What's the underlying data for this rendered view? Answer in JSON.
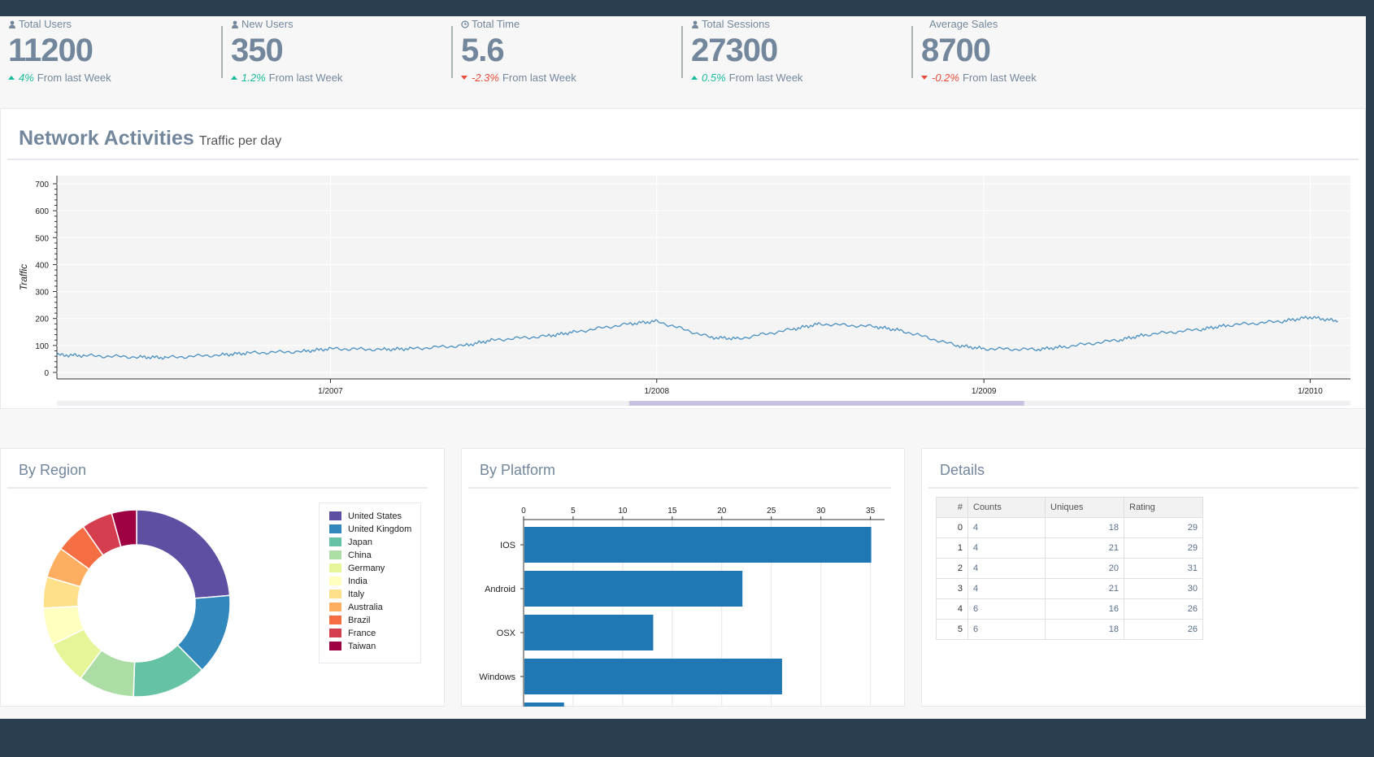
{
  "kpis": [
    {
      "label": "Total Users",
      "icon": "user-icon",
      "value": "11200",
      "change": "4%",
      "direction": "up",
      "suffix": "From last Week"
    },
    {
      "label": "New Users",
      "icon": "user-icon",
      "value": "350",
      "change": "1.2%",
      "direction": "up",
      "suffix": "From last Week"
    },
    {
      "label": "Total Time",
      "icon": "clock-icon",
      "value": "5.6",
      "change": "-2.3%",
      "direction": "down",
      "suffix": "From last Week"
    },
    {
      "label": "Total Sessions",
      "icon": "user-icon",
      "value": "27300",
      "change": "0.5%",
      "direction": "up",
      "suffix": "From last Week"
    },
    {
      "label": "Average Sales",
      "icon": "",
      "value": "8700",
      "change": "-0.2%",
      "direction": "down",
      "suffix": "From last Week"
    }
  ],
  "network": {
    "title": "Network Activities",
    "subtitle": "Traffic per day"
  },
  "region": {
    "title": "By Region"
  },
  "platform": {
    "title": "By Platform"
  },
  "details": {
    "title": "Details",
    "columns": [
      "#",
      "Counts",
      "Uniques",
      "Rating"
    ],
    "rows": [
      [
        "0",
        "4",
        "18",
        "29"
      ],
      [
        "1",
        "4",
        "21",
        "29"
      ],
      [
        "2",
        "4",
        "20",
        "31"
      ],
      [
        "3",
        "4",
        "21",
        "30"
      ],
      [
        "4",
        "6",
        "16",
        "26"
      ],
      [
        "5",
        "6",
        "18",
        "26"
      ]
    ]
  },
  "chart_data": [
    {
      "type": "line",
      "title": "",
      "ylabel": "Traffic",
      "xlabel": "",
      "ylim": [
        0,
        700
      ],
      "yticks": [
        0,
        100,
        200,
        300,
        400,
        500,
        600,
        700
      ],
      "xtick_labels": [
        "1/2007",
        "1/2008",
        "1/2009",
        "1/2010"
      ],
      "grid": true,
      "series": [
        {
          "x": [
            "2006-03",
            "2006-04",
            "2006-06",
            "2006-07",
            "2006-09",
            "2006-10",
            "2006-12",
            "2007-01",
            "2007-03",
            "2007-04",
            "2007-06",
            "2007-07",
            "2007-09",
            "2007-10",
            "2007-12",
            "2008-01",
            "2008-03",
            "2008-04",
            "2008-06",
            "2008-07",
            "2008-09",
            "2008-10",
            "2008-12",
            "2009-01",
            "2009-03",
            "2009-04",
            "2009-06",
            "2009-07",
            "2009-09",
            "2009-10",
            "2009-12",
            "2010-01",
            "2010-02"
          ],
          "y": [
            65,
            62,
            57,
            55,
            65,
            72,
            78,
            88,
            85,
            88,
            100,
            120,
            135,
            150,
            180,
            190,
            130,
            125,
            160,
            180,
            170,
            155,
            100,
            88,
            85,
            95,
            120,
            140,
            160,
            175,
            190,
            205,
            190
          ],
          "color": "#4a90c2"
        }
      ]
    },
    {
      "type": "pie",
      "donut": true,
      "categories": [
        "United States",
        "United Kingdom",
        "Japan",
        "China",
        "Germany",
        "India",
        "Italy",
        "Australia",
        "Brazil",
        "France",
        "Taiwan"
      ],
      "values": [
        22,
        13,
        12,
        9,
        7,
        6,
        5,
        5,
        5,
        5,
        4
      ],
      "colors": [
        "#5e4fa2",
        "#3288bd",
        "#66c2a5",
        "#abdda4",
        "#e6f598",
        "#ffffbf",
        "#fee08b",
        "#fdae61",
        "#f46d43",
        "#d53e4f",
        "#9e0142"
      ],
      "legend": "right"
    },
    {
      "type": "bar",
      "orientation": "horizontal",
      "categories": [
        "IOS",
        "Android",
        "OSX",
        "Windows",
        ""
      ],
      "values": [
        35,
        22,
        13,
        26,
        4
      ],
      "xlim": [
        0,
        37
      ],
      "xticks": [
        0,
        5,
        10,
        15,
        20,
        25,
        30,
        35
      ],
      "color": "#1f77b4"
    }
  ]
}
